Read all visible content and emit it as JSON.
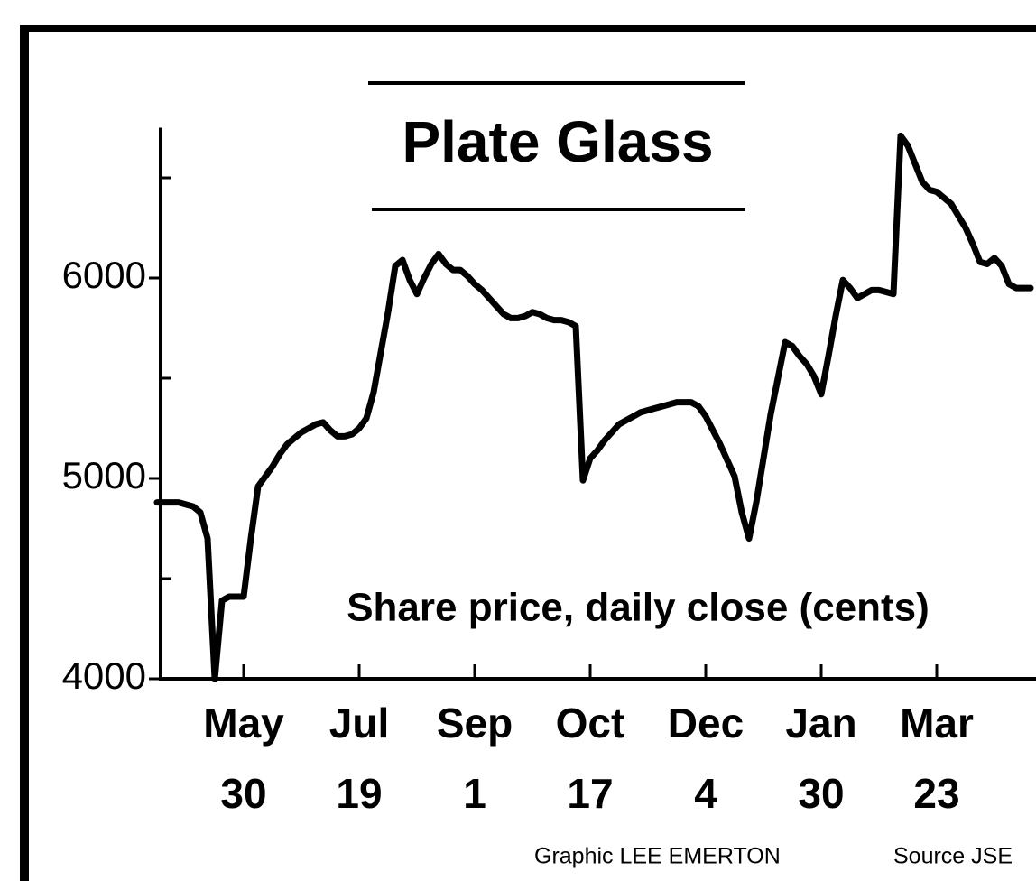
{
  "chart_data": {
    "type": "line",
    "title": "Plate Glass",
    "subtitle": "Share price, daily close (cents)",
    "annotations": [
      "Graphic LEE EMERTON",
      "Source JSE"
    ],
    "color": "#000000",
    "categories": [
      null,
      null,
      null,
      null,
      null,
      null,
      null,
      null,
      null,
      null,
      null,
      null,
      "May\n30",
      null,
      null,
      null,
      null,
      null,
      null,
      null,
      null,
      null,
      null,
      null,
      null,
      null,
      null,
      null,
      "Jul\n19",
      null,
      null,
      null,
      null,
      null,
      null,
      null,
      null,
      null,
      null,
      null,
      null,
      null,
      null,
      null,
      "Sep\n1",
      null,
      null,
      null,
      null,
      null,
      null,
      null,
      null,
      null,
      null,
      null,
      null,
      null,
      null,
      null,
      "Oct\n17",
      null,
      null,
      null,
      null,
      null,
      null,
      null,
      null,
      null,
      null,
      null,
      null,
      null,
      null,
      null,
      "Dec\n4",
      null,
      null,
      null,
      null,
      null,
      null,
      null,
      null,
      null,
      null,
      null,
      null,
      null,
      null,
      null,
      "Jan\n30",
      null,
      null,
      null,
      null,
      null,
      null,
      null,
      null,
      null,
      null,
      null,
      null,
      null,
      null,
      null,
      "Mar\n23",
      null,
      null,
      null,
      null,
      null,
      null,
      null,
      null,
      null,
      null,
      null,
      null,
      null
    ],
    "values": [
      4880,
      4880,
      4880,
      4880,
      4870,
      4860,
      4830,
      4700,
      4000,
      4390,
      4410,
      4410,
      4410,
      4700,
      4960,
      5010,
      5060,
      5120,
      5170,
      5200,
      5230,
      5250,
      5270,
      5280,
      5240,
      5210,
      5210,
      5220,
      5250,
      5300,
      5430,
      5630,
      5830,
      6060,
      6090,
      5990,
      5920,
      6000,
      6070,
      6120,
      6070,
      6040,
      6040,
      6010,
      5970,
      5940,
      5900,
      5860,
      5820,
      5800,
      5800,
      5810,
      5830,
      5820,
      5800,
      5790,
      5790,
      5780,
      5760,
      4990,
      5100,
      5140,
      5190,
      5230,
      5270,
      5290,
      5310,
      5330,
      5340,
      5350,
      5360,
      5370,
      5380,
      5380,
      5380,
      5360,
      5310,
      5240,
      5170,
      5090,
      5010,
      4830,
      4700,
      4880,
      5100,
      5320,
      5500,
      5680,
      5660,
      5610,
      5570,
      5510,
      5420,
      5610,
      5810,
      5990,
      5950,
      5900,
      5920,
      5940,
      5940,
      5930,
      5920,
      6710,
      6660,
      6570,
      6480,
      6440,
      6430,
      6400,
      6370,
      6310,
      6250,
      6170,
      6080,
      6070,
      6100,
      6060,
      5970,
      5950,
      5950,
      5950
    ],
    "ylim": [
      4000,
      6750
    ],
    "yticks": [
      4000,
      5000,
      6000
    ],
    "yticks_minor": [
      4500,
      5500,
      6500
    ]
  }
}
